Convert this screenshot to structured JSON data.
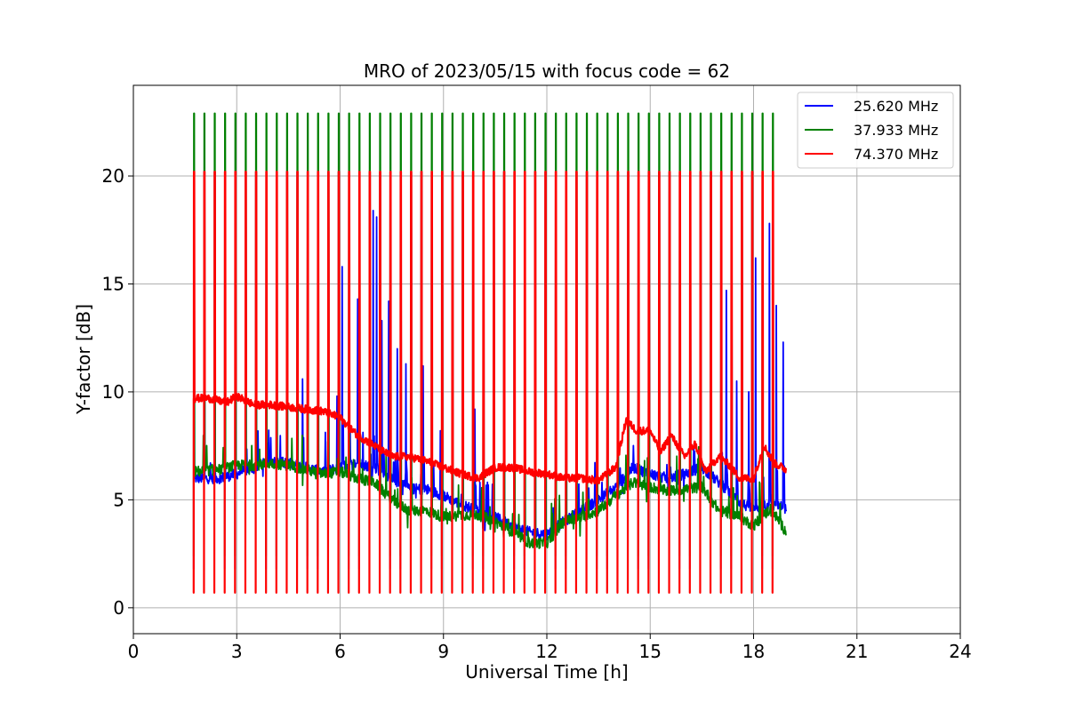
{
  "chart_data": {
    "type": "line",
    "title": "MRO of 2023/05/15 with focus code = 62",
    "xlabel": "Universal Time [h]",
    "ylabel": "Y-factor [dB]",
    "xlim": [
      0,
      24
    ],
    "ylim": [
      -1.2,
      24.2
    ],
    "xticks": [
      0,
      3,
      6,
      9,
      12,
      15,
      18,
      21,
      24
    ],
    "yticks": [
      0,
      5,
      10,
      15,
      20
    ],
    "grid": true,
    "legend_position": "top-right",
    "calibration": {
      "start_h": 1.75,
      "end_h": 18.75,
      "period_h": 0.3,
      "data_end_h": 18.95
    },
    "series": [
      {
        "name": "25.620 MHz",
        "color": "#0000ff",
        "cal_high": 20.2,
        "cal_low": 1.8,
        "baseline": {
          "x": [
            1.75,
            2.5,
            3.0,
            3.5,
            4.0,
            4.5,
            5.0,
            5.5,
            6.0,
            6.5,
            7.0,
            7.5,
            8.0,
            8.5,
            9.0,
            9.5,
            10.0,
            10.5,
            11.0,
            11.5,
            12.0,
            12.5,
            13.0,
            13.5,
            14.0,
            14.5,
            15.0,
            15.5,
            16.0,
            16.5,
            17.0,
            17.5,
            18.0,
            18.5,
            18.95
          ],
          "y": [
            6.0,
            6.0,
            6.2,
            6.5,
            6.8,
            6.7,
            6.5,
            6.3,
            6.5,
            6.7,
            6.5,
            6.0,
            5.5,
            5.5,
            5.2,
            4.8,
            4.5,
            4.2,
            3.8,
            3.5,
            3.4,
            4.0,
            4.5,
            5.0,
            5.6,
            6.5,
            6.2,
            6.0,
            6.2,
            6.5,
            5.8,
            5.0,
            4.5,
            4.8,
            4.6
          ]
        },
        "spikes": [
          {
            "x": 4.9,
            "y": 10.6
          },
          {
            "x": 5.9,
            "y": 9.8
          },
          {
            "x": 6.05,
            "y": 15.8
          },
          {
            "x": 6.25,
            "y": 13.0
          },
          {
            "x": 6.5,
            "y": 14.3
          },
          {
            "x": 6.95,
            "y": 18.4
          },
          {
            "x": 7.05,
            "y": 18.1
          },
          {
            "x": 7.2,
            "y": 13.3
          },
          {
            "x": 7.4,
            "y": 14.2
          },
          {
            "x": 7.65,
            "y": 12.0
          },
          {
            "x": 7.9,
            "y": 11.3
          },
          {
            "x": 8.4,
            "y": 11.2
          },
          {
            "x": 8.9,
            "y": 8.2
          },
          {
            "x": 9.9,
            "y": 9.2
          },
          {
            "x": 17.05,
            "y": 13.4
          },
          {
            "x": 17.2,
            "y": 14.7
          },
          {
            "x": 17.5,
            "y": 10.5
          },
          {
            "x": 17.85,
            "y": 10.0
          },
          {
            "x": 18.05,
            "y": 16.2
          },
          {
            "x": 18.25,
            "y": 15.4
          },
          {
            "x": 18.45,
            "y": 17.8
          },
          {
            "x": 18.65,
            "y": 14.0
          },
          {
            "x": 18.85,
            "y": 12.3
          }
        ]
      },
      {
        "name": "37.933 MHz",
        "color": "#008000",
        "cal_high": 22.9,
        "cal_low": 2.4,
        "baseline": {
          "x": [
            1.75,
            2.5,
            3.0,
            3.5,
            4.0,
            4.5,
            5.0,
            5.5,
            6.0,
            6.5,
            7.0,
            7.5,
            8.0,
            8.5,
            9.0,
            9.5,
            10.0,
            10.5,
            11.0,
            11.5,
            12.0,
            12.5,
            13.0,
            13.5,
            14.0,
            14.5,
            15.0,
            15.5,
            16.0,
            16.5,
            17.0,
            17.5,
            18.0,
            18.5,
            18.95
          ],
          "y": [
            6.3,
            6.4,
            6.6,
            6.6,
            6.7,
            6.6,
            6.4,
            6.2,
            6.3,
            6.0,
            5.8,
            5.0,
            4.5,
            4.5,
            4.2,
            4.3,
            4.3,
            4.0,
            3.5,
            3.0,
            3.0,
            4.0,
            4.2,
            4.5,
            5.2,
            5.8,
            5.6,
            5.4,
            5.5,
            5.6,
            4.5,
            4.3,
            3.8,
            4.6,
            3.5
          ]
        },
        "spikes": []
      },
      {
        "name": "74.370 MHz",
        "color": "#ff0000",
        "cal_high": 20.2,
        "cal_low": 0.7,
        "baseline": {
          "x": [
            1.75,
            2.2,
            2.7,
            3.0,
            3.5,
            4.0,
            4.5,
            5.0,
            5.5,
            6.0,
            6.5,
            7.0,
            7.5,
            8.0,
            8.5,
            9.0,
            9.5,
            10.0,
            10.5,
            11.0,
            11.5,
            12.0,
            12.5,
            13.0,
            13.5,
            14.0,
            14.3,
            14.6,
            15.0,
            15.3,
            15.6,
            16.0,
            16.3,
            16.6,
            17.0,
            17.3,
            17.6,
            18.0,
            18.3,
            18.6,
            18.95
          ],
          "y": [
            9.7,
            9.7,
            9.5,
            9.8,
            9.4,
            9.4,
            9.3,
            9.2,
            9.1,
            8.8,
            8.0,
            7.5,
            7.0,
            7.0,
            6.8,
            6.5,
            6.2,
            6.0,
            6.5,
            6.5,
            6.3,
            6.2,
            6.0,
            6.0,
            5.9,
            6.5,
            8.7,
            8.2,
            8.2,
            7.2,
            8.0,
            7.0,
            7.6,
            6.3,
            7.0,
            6.6,
            6.0,
            6.0,
            7.5,
            6.7,
            6.4
          ]
        },
        "spikes": []
      }
    ]
  }
}
